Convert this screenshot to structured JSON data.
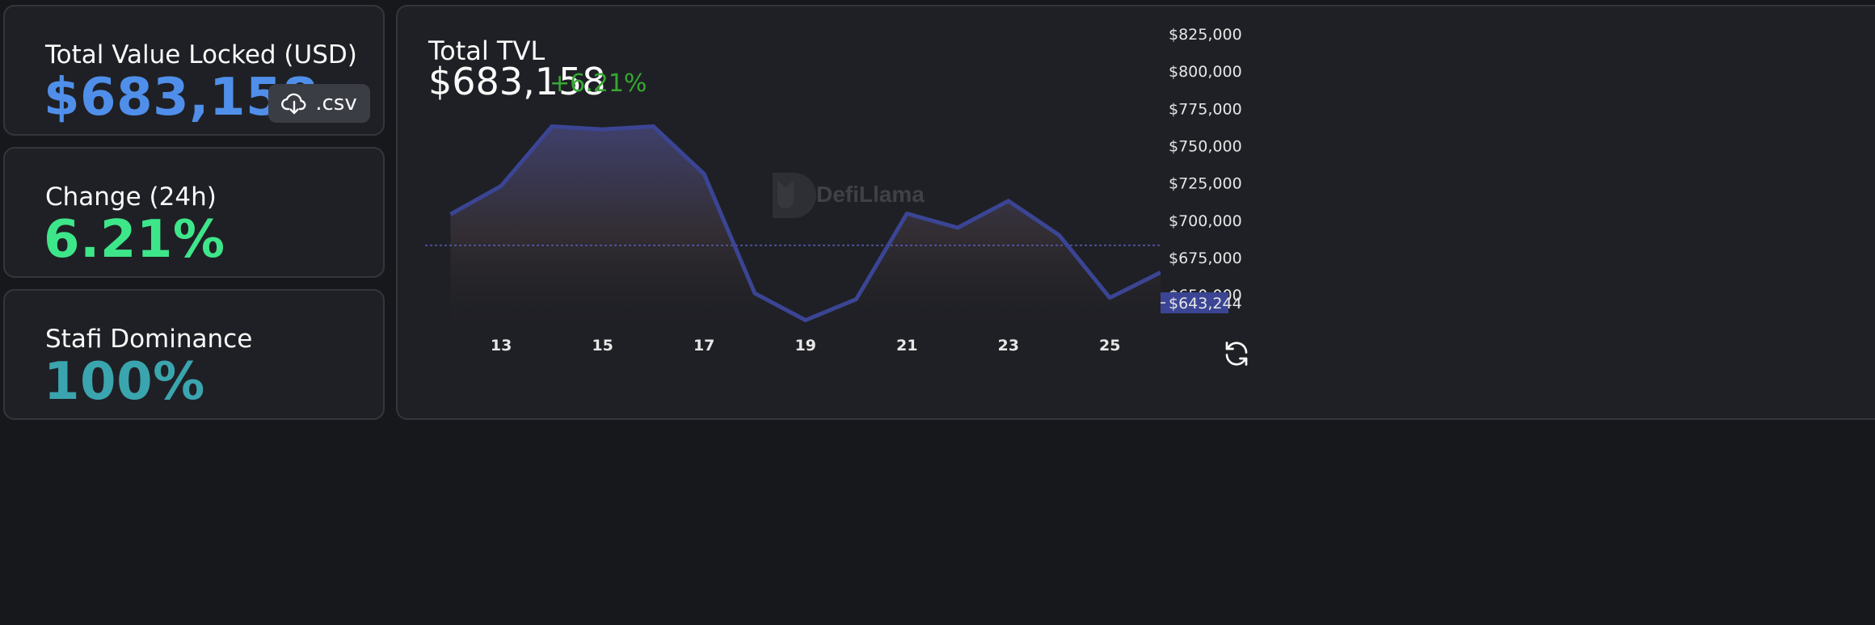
{
  "stats": {
    "tvl": {
      "label": "Total Value Locked (USD)",
      "value": "$683,158",
      "color": "#4f8fea"
    },
    "change": {
      "label": "Change (24h)",
      "value": "6.21%",
      "color": "#3ee68a"
    },
    "dominance": {
      "label": "Stafi Dominance",
      "value": "100%",
      "color": "#3aa5ae"
    }
  },
  "csv_button": {
    "label": ".csv",
    "icon": "cloud-download-icon"
  },
  "chart": {
    "title": "Total TVL",
    "value": "$683,158",
    "change": "+6.21%",
    "watermark": "DefiLlama",
    "current_price_label": "$643,244",
    "refresh_icon": "refresh-icon",
    "colors": {
      "line": "#3b4594",
      "reference": "#5c63c9",
      "price_tag": "#3b4594"
    }
  },
  "chart_data": {
    "type": "area",
    "x": [
      12,
      13,
      14,
      15,
      16,
      17,
      18,
      19,
      20,
      21,
      22,
      23,
      24,
      25,
      26
    ],
    "x_tick_labels": [
      "13",
      "15",
      "17",
      "19",
      "21",
      "23",
      "25"
    ],
    "x_tick_values": [
      13,
      15,
      17,
      19,
      21,
      23,
      25
    ],
    "series": [
      {
        "values": [
          704000,
          723000,
          763000,
          761000,
          763000,
          731000,
          651000,
          633000,
          647000,
          704500,
          695000,
          713000,
          690000,
          648000,
          665000
        ]
      }
    ],
    "reference_line": 683158,
    "y_tick_labels": [
      "$650,000",
      "$675,000",
      "$700,000",
      "$725,000",
      "$750,000",
      "$775,000",
      "$800,000",
      "$825,000"
    ],
    "y_tick_values": [
      650000,
      675000,
      700000,
      725000,
      750000,
      775000,
      800000,
      825000
    ],
    "xlim": [
      11.5,
      26
    ],
    "ylim": [
      630000,
      825000
    ],
    "grid": false
  }
}
